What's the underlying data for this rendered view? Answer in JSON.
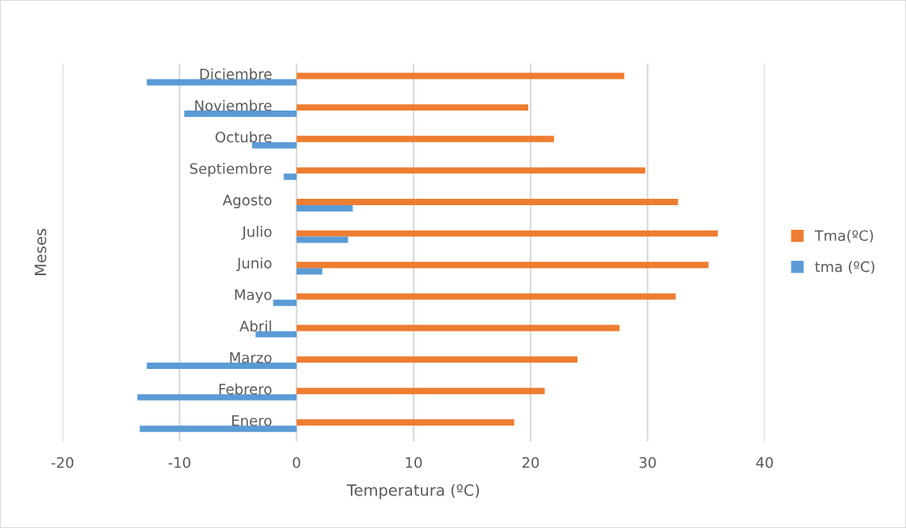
{
  "chart_data": {
    "type": "bar",
    "orientation": "horizontal",
    "xlabel": "Temperatura (ºC)",
    "ylabel": "Meses",
    "categories": [
      "Diciembre",
      "Noviembre",
      "Octubre",
      "Septiembre",
      "Agosto",
      "Julio",
      "Junio",
      "Mayo",
      "Abril",
      "Marzo",
      "Febrero",
      "Enero"
    ],
    "series": [
      {
        "name": "Tma(ºC)",
        "color": "#ed7d31",
        "values": [
          28.0,
          19.8,
          22.0,
          29.8,
          32.6,
          36.0,
          35.2,
          32.4,
          27.6,
          24.0,
          21.2,
          18.6
        ]
      },
      {
        "name": "tma (ºC)",
        "color": "#5b9bd5",
        "values": [
          -12.8,
          -9.6,
          -3.8,
          -1.1,
          4.8,
          4.4,
          2.2,
          -2.0,
          -3.5,
          -12.8,
          -13.6,
          -13.4
        ]
      }
    ],
    "xlim": [
      -20,
      40
    ],
    "xticks": [
      -20,
      -10,
      0,
      10,
      20,
      30,
      40
    ],
    "grid": "x",
    "legend": "right"
  }
}
